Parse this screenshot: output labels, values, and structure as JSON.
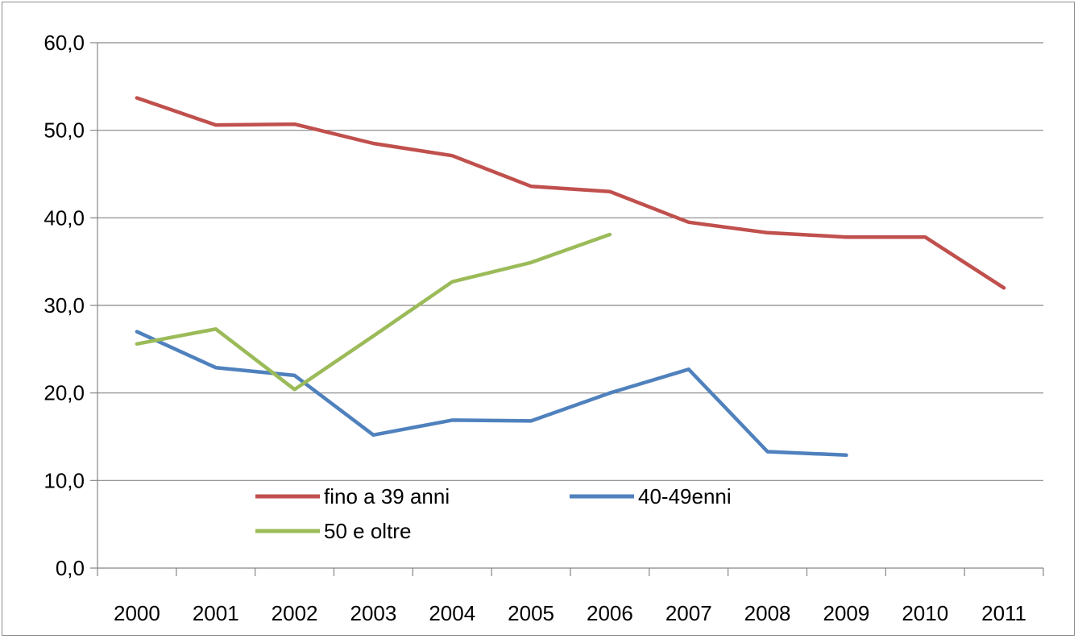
{
  "chart_data": {
    "type": "line",
    "title": "",
    "xlabel": "",
    "ylabel": "",
    "categories": [
      "2000",
      "2001",
      "2002",
      "2003",
      "2004",
      "2005",
      "2006",
      "2007",
      "2008",
      "2009",
      "2010",
      "2011"
    ],
    "ylim": [
      0,
      60
    ],
    "yticks": [
      "0,0",
      "10,0",
      "20,0",
      "30,0",
      "40,0",
      "50,0",
      "60,0"
    ],
    "grid": true,
    "legend_position": "inside-bottom-left",
    "series": [
      {
        "name": "fino a 39 anni",
        "color": "#c0504d",
        "values": [
          53.7,
          50.6,
          50.7,
          48.5,
          47.1,
          43.6,
          43.0,
          39.5,
          38.3,
          37.8,
          37.8,
          32.0
        ]
      },
      {
        "name": "40-49enni",
        "color": "#4f81bd",
        "values": [
          27.0,
          22.9,
          22.0,
          15.2,
          16.9,
          16.8,
          20.0,
          22.7,
          13.3,
          12.9,
          null,
          null
        ]
      },
      {
        "name": "50 e oltre",
        "color": "#9bbb59",
        "values": [
          25.6,
          27.3,
          20.4,
          26.5,
          32.7,
          34.9,
          38.1,
          null,
          null,
          null,
          null,
          null
        ]
      }
    ]
  }
}
